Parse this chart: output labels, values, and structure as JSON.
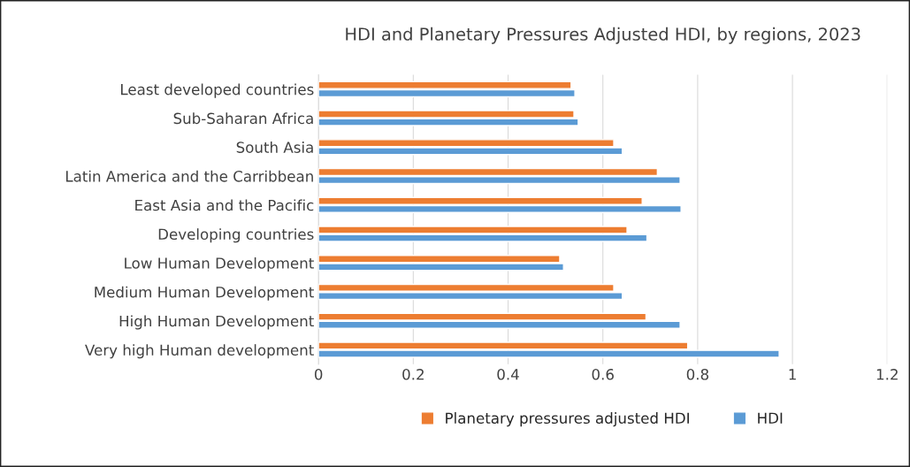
{
  "chart_data": {
    "type": "bar",
    "orientation": "horizontal",
    "title": "HDI and Planetary Pressures Adjusted HDI, by regions, 2023",
    "categories": [
      "Least developed countries",
      "Sub-Saharan Africa",
      "South Asia",
      "Latin America and the Carribbean",
      "East Asia and the Pacific",
      "Developing countries",
      "Low Human Development",
      "Medium Human Development",
      "High Human Development",
      "Very high Human development"
    ],
    "series": [
      {
        "name": "Planetary pressures adjusted HDI",
        "color": "#ed7d31",
        "values": [
          0.533,
          0.539,
          0.623,
          0.715,
          0.683,
          0.651,
          0.509,
          0.623,
          0.691,
          0.779
        ]
      },
      {
        "name": "HDI",
        "color": "#5b9bd5",
        "values": [
          0.541,
          0.548,
          0.641,
          0.763,
          0.765,
          0.693,
          0.517,
          0.641,
          0.763,
          0.972
        ]
      }
    ],
    "xlim": [
      0,
      1.2
    ],
    "xticks": [
      0,
      0.2,
      0.4,
      0.6,
      0.8,
      1,
      1.2
    ],
    "grid": "x",
    "legend": "bottom"
  }
}
